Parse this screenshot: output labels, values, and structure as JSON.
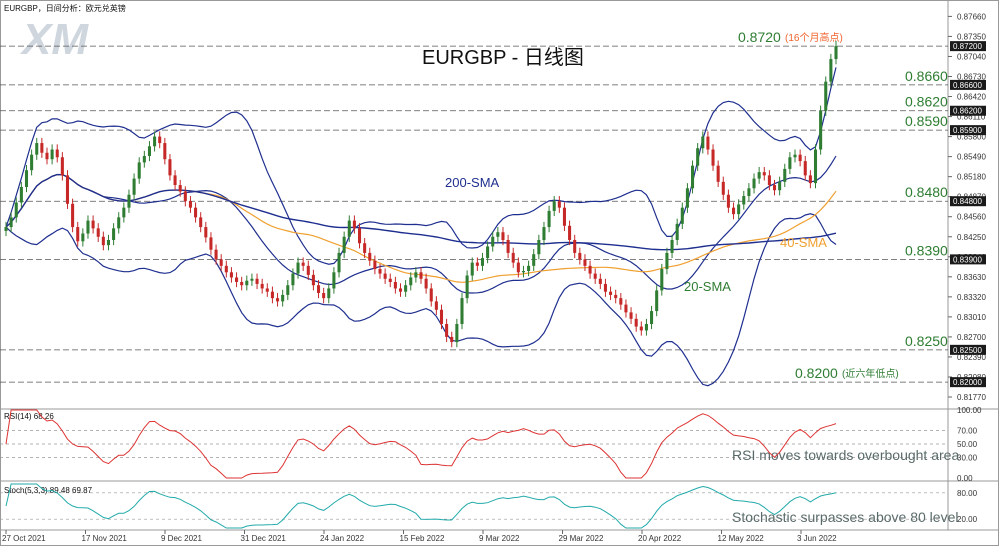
{
  "chart_data": [
    {
      "type": "candlestick",
      "title": "EURGBP - 日线图",
      "header": "EURGBP，日间分析：欧元兑英镑",
      "watermark": "XM",
      "x_tick_labels": [
        "27 Oct 2021",
        "17 Nov 2021",
        "9 Dec 2021",
        "31 Dec 2021",
        "24 Jan 2022",
        "15 Feb 2022",
        "9 Mar 2022",
        "29 Mar 2022",
        "20 Apr 2022",
        "12 May 2022",
        "3 Jun 2022"
      ],
      "y_tick_labels": [
        "0.87660",
        "0.87350",
        "0.87040",
        "0.86730",
        "0.86420",
        "0.86110",
        "0.85800",
        "0.85490",
        "0.85180",
        "0.84870",
        "0.84560",
        "0.84250",
        "0.83940",
        "0.83630",
        "0.83320",
        "0.83010",
        "0.82700",
        "0.82390",
        "0.82080",
        "0.81770"
      ],
      "ylim": [
        0.816,
        0.8779
      ],
      "price_tags": [
        "0.87200",
        "0.86600",
        "0.86200",
        "0.85900",
        "0.84800",
        "0.83900",
        "0.82500",
        "0.82000"
      ],
      "levels": [
        {
          "value": 0.872,
          "label": "0.8720",
          "note": "(16个月高点)",
          "color": "#f0642d"
        },
        {
          "value": 0.866,
          "label": "0.8660",
          "color": "#2e7d32"
        },
        {
          "value": 0.862,
          "label": "0.8620",
          "color": "#2e7d32"
        },
        {
          "value": 0.859,
          "label": "0.8590",
          "color": "#2e7d32"
        },
        {
          "value": 0.848,
          "label": "0.8480",
          "color": "#2e7d32"
        },
        {
          "value": 0.839,
          "label": "0.8390",
          "color": "#2e7d32"
        },
        {
          "value": 0.825,
          "label": "0.8250",
          "color": "#2e7d32"
        },
        {
          "value": 0.82,
          "label": "0.8200",
          "note": "(近六年低点)",
          "color": "#2e7d32"
        }
      ],
      "line_labels": {
        "sma200": "200-SMA",
        "sma40": "40-SMA",
        "sma20": "20-SMA"
      },
      "closes": [
        0.844,
        0.8455,
        0.8478,
        0.8502,
        0.8528,
        0.8552,
        0.857,
        0.8555,
        0.8545,
        0.856,
        0.8548,
        0.852,
        0.8476,
        0.844,
        0.8418,
        0.843,
        0.845,
        0.8438,
        0.8425,
        0.8412,
        0.842,
        0.8438,
        0.8455,
        0.847,
        0.849,
        0.8515,
        0.854,
        0.855,
        0.8565,
        0.858,
        0.857,
        0.8545,
        0.852,
        0.8505,
        0.8495,
        0.848,
        0.847,
        0.8455,
        0.844,
        0.8424,
        0.8405,
        0.839,
        0.838,
        0.837,
        0.8362,
        0.8355,
        0.835,
        0.8357,
        0.836,
        0.8352,
        0.8345,
        0.834,
        0.833,
        0.8325,
        0.8335,
        0.835,
        0.8368,
        0.8385,
        0.838,
        0.8366,
        0.835,
        0.8338,
        0.833,
        0.8345,
        0.837,
        0.84,
        0.8425,
        0.845,
        0.8438,
        0.8415,
        0.84,
        0.8388,
        0.8375,
        0.8368,
        0.836,
        0.8355,
        0.8345,
        0.834,
        0.835,
        0.8362,
        0.837,
        0.836,
        0.8345,
        0.8325,
        0.8312,
        0.829,
        0.827,
        0.8262,
        0.829,
        0.833,
        0.8365,
        0.8385,
        0.838,
        0.8392,
        0.841,
        0.8425,
        0.8432,
        0.842,
        0.84,
        0.8385,
        0.837,
        0.8372,
        0.838,
        0.8398,
        0.842,
        0.844,
        0.8465,
        0.848,
        0.847,
        0.8442,
        0.842,
        0.84,
        0.839,
        0.838,
        0.8368,
        0.836,
        0.8352,
        0.834,
        0.8335,
        0.833,
        0.832,
        0.8308,
        0.8298,
        0.8286,
        0.828,
        0.829,
        0.831,
        0.8342,
        0.8375,
        0.84,
        0.842,
        0.8445,
        0.847,
        0.85,
        0.8535,
        0.8562,
        0.858,
        0.856,
        0.8535,
        0.851,
        0.849,
        0.847,
        0.846,
        0.8475,
        0.8488,
        0.85,
        0.8515,
        0.8525,
        0.852,
        0.8505,
        0.8497,
        0.851,
        0.853,
        0.8548,
        0.8552,
        0.8542,
        0.852,
        0.8508,
        0.856,
        0.862,
        0.8665,
        0.87,
        0.872
      ],
      "oscillators": [
        {
          "name": "RSI(14)",
          "value_label": "68.26",
          "ylim": [
            0,
            100
          ],
          "ticks": [
            "100.00",
            "70.00",
            "50.00",
            "30.00",
            "0.00"
          ],
          "ref_lines": [
            70,
            50,
            30
          ],
          "annotation": "RSI moves towards overbought area"
        },
        {
          "name": "Stoch(5,3,3)",
          "value_label": "89.48 69.87",
          "ylim": [
            0,
            100
          ],
          "ticks": [
            "80.00",
            "20.00"
          ],
          "ref_lines": [
            80,
            20
          ],
          "annotation": "Stochastic surpasses above 80 level"
        }
      ],
      "colors": {
        "up": "#2e7d32",
        "down": "#c62828",
        "sma200": "#1f2f8f",
        "sma40": "#f0a030",
        "bollinger": "#1f2f8f",
        "level_line": "#555555",
        "rsi": "#d33",
        "stoch_k": "#2aa",
        "stoch_d": "#d33"
      }
    }
  ]
}
